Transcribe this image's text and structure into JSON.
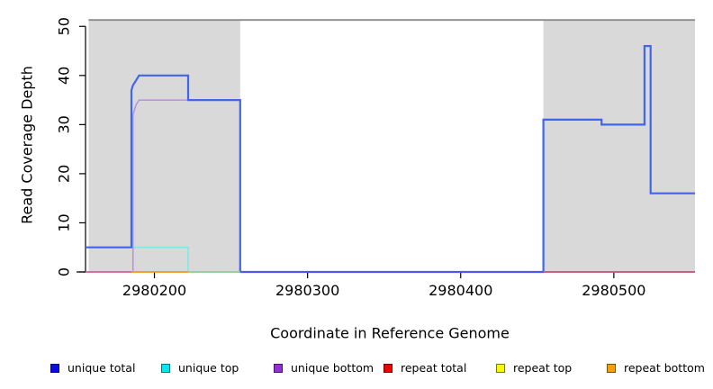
{
  "chart_data": {
    "type": "line",
    "subtype": "step-coverage",
    "title": "",
    "xlabel": "Coordinate in Reference Genome",
    "ylabel": "Read Coverage Depth",
    "xlim": [
      2980155,
      2980553
    ],
    "ylim": [
      0,
      51.7
    ],
    "xticks": [
      2980200,
      2980300,
      2980400,
      2980500
    ],
    "yticks": [
      0,
      10,
      20,
      30,
      40,
      50
    ],
    "grid": false,
    "background_color": "#ffffff",
    "shaded_regions": {
      "color": "#d9d9d9",
      "regions": [
        {
          "x1": 2980157,
          "x2": 2980256
        },
        {
          "x1": 2980454,
          "x2": 2980553
        }
      ]
    },
    "ceiling_line": {
      "y": 51.3,
      "x1": 2980157,
      "x2": 2980553,
      "color": "#8c8c8c"
    },
    "series": [
      {
        "name": "unique total",
        "color": "#4166ee",
        "width": 2.2,
        "visible_line": true,
        "points": [
          [
            2980155,
            5
          ],
          [
            2980185,
            5
          ],
          [
            2980185,
            37
          ],
          [
            2980186,
            38
          ],
          [
            2980188,
            39
          ],
          [
            2980190,
            40
          ],
          [
            2980222,
            40
          ],
          [
            2980222,
            35
          ],
          [
            2980256,
            35
          ],
          [
            2980256,
            0
          ],
          [
            2980454,
            0
          ],
          [
            2980454,
            31
          ],
          [
            2980492,
            31
          ],
          [
            2980492,
            30
          ],
          [
            2980520,
            30
          ],
          [
            2980520,
            46
          ],
          [
            2980524,
            46
          ],
          [
            2980524,
            16
          ],
          [
            2980553,
            16
          ]
        ]
      },
      {
        "name": "unique top",
        "color": "#7fe8e8",
        "width": 1.6,
        "visible_line": true,
        "points": [
          [
            2980155,
            5
          ],
          [
            2980222,
            5
          ],
          [
            2980222,
            0
          ],
          [
            2980553,
            0
          ]
        ]
      },
      {
        "name": "unique bottom",
        "color": "#b98fe0",
        "width": 1.5,
        "visible_line": true,
        "points": [
          [
            2980155,
            0
          ],
          [
            2980186,
            0
          ],
          [
            2980186,
            32
          ],
          [
            2980188,
            34
          ],
          [
            2980190,
            35
          ],
          [
            2980256,
            35
          ],
          [
            2980256,
            0
          ],
          [
            2980553,
            0
          ]
        ]
      },
      {
        "name": "repeat total",
        "color": "#d05478",
        "width": 1.6,
        "visible_line": false,
        "points": [
          [
            2980155,
            0
          ],
          [
            2980553,
            0
          ]
        ]
      },
      {
        "name": "repeat top",
        "color": "#f8f800",
        "width": 1.6,
        "visible_line": false,
        "points": [
          [
            2980155,
            0
          ],
          [
            2980553,
            0
          ]
        ]
      },
      {
        "name": "repeat bottom",
        "color": "#ff9c1e",
        "width": 1.6,
        "visible_line": false,
        "points": [
          [
            2980155,
            0
          ],
          [
            2980553,
            0
          ]
        ]
      }
    ],
    "baseline_overlap_segments": [
      {
        "x1": 2980155,
        "x2": 2980185,
        "color": "#e0679a"
      },
      {
        "x1": 2980185,
        "x2": 2980222,
        "color": "#ff9c1e"
      },
      {
        "x1": 2980222,
        "x2": 2980256,
        "color": "#9cce9c"
      },
      {
        "x1": 2980256,
        "x2": 2980454,
        "color": "#5a53ea"
      },
      {
        "x1": 2980454,
        "x2": 2980553,
        "color": "#d05478"
      }
    ],
    "legend_position": "bottom"
  },
  "legend": {
    "items": [
      {
        "label": "unique total",
        "x": 56,
        "fill": "#0a0ae6",
        "border": "#000080"
      },
      {
        "label": "unique top",
        "x": 179,
        "fill": "#00e8f0",
        "border": "#00787f"
      },
      {
        "label": "unique bottom",
        "x": 304,
        "fill": "#9430d0",
        "border": "#4b0b7a"
      },
      {
        "label": "repeat total",
        "x": 426,
        "fill": "#f00000",
        "border": "#7a0000"
      },
      {
        "label": "repeat top",
        "x": 551,
        "fill": "#f8f800",
        "border": "#7a7a00"
      },
      {
        "label": "repeat bottom",
        "x": 674,
        "fill": "#f8a000",
        "border": "#7a5000"
      }
    ]
  },
  "axes_style": {
    "tick_color": "#000000",
    "label_color": "#000000"
  }
}
